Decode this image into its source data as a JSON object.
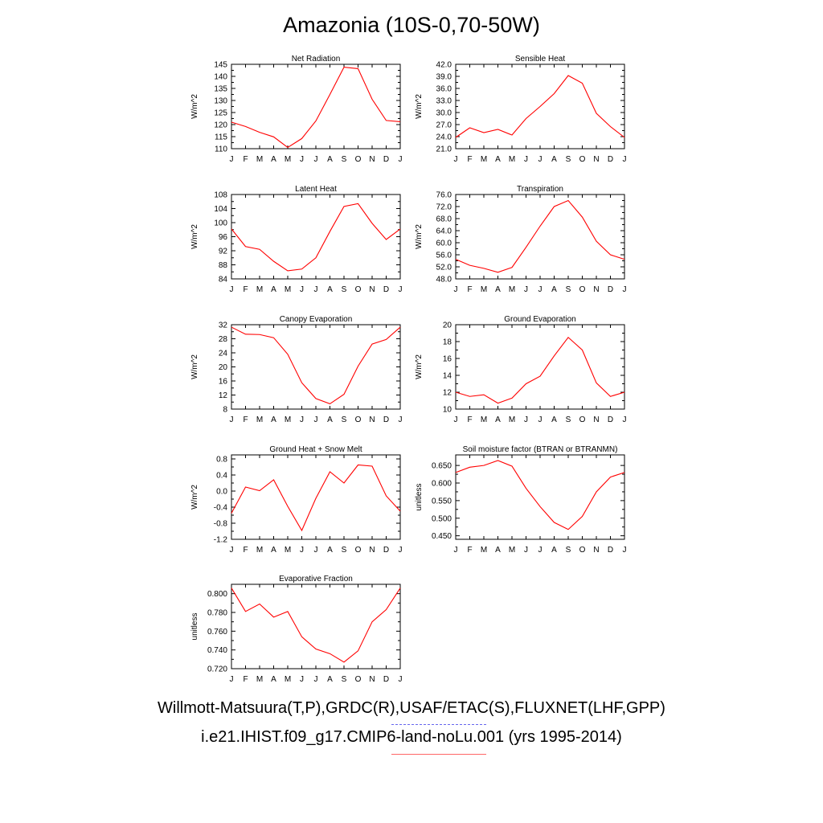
{
  "figure": {
    "title": "Amazonia (10S-0,70-50W)",
    "legend": {
      "observations": "Willmott-Matsuura(T,P),GRDC(R),USAF/ETAC(S),FLUXNET(LHF,GPP)",
      "model": "i.e21.IHIST.f09_g17.CMIP6-land-noLu.001 (yrs 1995-2014)"
    },
    "colors": {
      "model_line": "#ff0000",
      "obs_swatch": "#6666ee",
      "model_swatch": "#ff6666"
    }
  },
  "chart_data": [
    {
      "type": "line",
      "title": "Net Radiation",
      "ylabel": "W/m^2",
      "categories": [
        "J",
        "F",
        "M",
        "A",
        "M",
        "J",
        "J",
        "A",
        "S",
        "O",
        "N",
        "D",
        "J"
      ],
      "ylim": [
        110,
        145
      ],
      "yticks": [
        110,
        115,
        120,
        125,
        130,
        135,
        140,
        145
      ],
      "ydecimals": 0,
      "series": [
        {
          "color": "#ff0000",
          "values": [
            121.0,
            119.2,
            116.8,
            114.9,
            110.5,
            114.2,
            121.5,
            132.5,
            143.8,
            143.2,
            130.5,
            121.7,
            121.2
          ]
        }
      ]
    },
    {
      "type": "line",
      "title": "Sensible Heat",
      "ylabel": "W/m^2",
      "categories": [
        "J",
        "F",
        "M",
        "A",
        "M",
        "J",
        "J",
        "A",
        "S",
        "O",
        "N",
        "D",
        "J"
      ],
      "ylim": [
        21,
        42
      ],
      "yticks": [
        21,
        24,
        27,
        30,
        33,
        36,
        39,
        42
      ],
      "ydecimals": 1,
      "series": [
        {
          "color": "#ff0000",
          "values": [
            23.8,
            26.2,
            25.0,
            25.8,
            24.4,
            28.5,
            31.5,
            34.7,
            39.2,
            37.3,
            29.8,
            26.5,
            23.8
          ]
        }
      ]
    },
    {
      "type": "line",
      "title": "Latent Heat",
      "ylabel": "W/m^2",
      "categories": [
        "J",
        "F",
        "M",
        "A",
        "M",
        "J",
        "J",
        "A",
        "S",
        "O",
        "N",
        "D",
        "J"
      ],
      "ylim": [
        84,
        108
      ],
      "yticks": [
        84,
        88,
        92,
        96,
        100,
        104,
        108
      ],
      "ydecimals": 0,
      "series": [
        {
          "color": "#ff0000",
          "values": [
            98.2,
            93.2,
            92.4,
            89.0,
            86.3,
            86.8,
            90.0,
            97.5,
            104.6,
            105.4,
            99.8,
            95.2,
            98.2
          ]
        }
      ]
    },
    {
      "type": "line",
      "title": "Transpiration",
      "ylabel": "W/m^2",
      "categories": [
        "J",
        "F",
        "M",
        "A",
        "M",
        "J",
        "J",
        "A",
        "S",
        "O",
        "N",
        "D",
        "J"
      ],
      "ylim": [
        48,
        76
      ],
      "yticks": [
        48,
        52,
        56,
        60,
        64,
        68,
        72,
        76
      ],
      "ydecimals": 1,
      "series": [
        {
          "color": "#ff0000",
          "values": [
            54.5,
            52.5,
            51.5,
            50.2,
            51.8,
            58.5,
            65.5,
            72.0,
            74.0,
            68.5,
            60.5,
            56.0,
            54.5
          ]
        }
      ]
    },
    {
      "type": "line",
      "title": "Canopy Evaporation",
      "ylabel": "W/m^2",
      "categories": [
        "J",
        "F",
        "M",
        "A",
        "M",
        "J",
        "J",
        "A",
        "S",
        "O",
        "N",
        "D",
        "J"
      ],
      "ylim": [
        8,
        32
      ],
      "yticks": [
        8,
        12,
        16,
        20,
        24,
        28,
        32
      ],
      "ydecimals": 0,
      "series": [
        {
          "color": "#ff0000",
          "values": [
            31.3,
            29.3,
            29.2,
            28.3,
            23.6,
            15.5,
            11.0,
            9.5,
            12.2,
            20.2,
            26.5,
            27.8,
            31.3
          ]
        }
      ]
    },
    {
      "type": "line",
      "title": "Ground Evaporation",
      "ylabel": "W/m^2",
      "categories": [
        "J",
        "F",
        "M",
        "A",
        "M",
        "J",
        "J",
        "A",
        "S",
        "O",
        "N",
        "D",
        "J"
      ],
      "ylim": [
        10,
        20
      ],
      "yticks": [
        10,
        12,
        14,
        16,
        18,
        20
      ],
      "ydecimals": 0,
      "series": [
        {
          "color": "#ff0000",
          "values": [
            12.0,
            11.5,
            11.7,
            10.7,
            11.3,
            13.0,
            13.9,
            16.3,
            18.5,
            17.0,
            13.1,
            11.5,
            12.0
          ]
        }
      ]
    },
    {
      "type": "line",
      "title": "Ground Heat + Snow Melt",
      "ylabel": "W/m^2",
      "categories": [
        "J",
        "F",
        "M",
        "A",
        "M",
        "J",
        "J",
        "A",
        "S",
        "O",
        "N",
        "D",
        "J"
      ],
      "ylim": [
        -1.2,
        0.9
      ],
      "yticks": [
        -1.2,
        -0.8,
        -0.4,
        0.0,
        0.4,
        0.8
      ],
      "ydecimals": 1,
      "series": [
        {
          "color": "#ff0000",
          "values": [
            -0.55,
            0.1,
            0.01,
            0.28,
            -0.38,
            -0.98,
            -0.18,
            0.48,
            0.2,
            0.65,
            0.62,
            -0.12,
            -0.5
          ]
        }
      ]
    },
    {
      "type": "line",
      "title": "Soil moisture factor (BTRAN or BTRANMN)",
      "ylabel": "unitless",
      "categories": [
        "J",
        "F",
        "M",
        "A",
        "M",
        "J",
        "J",
        "A",
        "S",
        "O",
        "N",
        "D",
        "J"
      ],
      "ylim": [
        0.44,
        0.68
      ],
      "yticks": [
        0.45,
        0.5,
        0.55,
        0.6,
        0.65
      ],
      "ydecimals": 3,
      "series": [
        {
          "color": "#ff0000",
          "values": [
            0.63,
            0.645,
            0.65,
            0.664,
            0.648,
            0.585,
            0.533,
            0.488,
            0.468,
            0.505,
            0.575,
            0.617,
            0.63
          ]
        }
      ]
    },
    {
      "type": "line",
      "title": "Evaporative Fraction",
      "ylabel": "unitless",
      "categories": [
        "J",
        "F",
        "M",
        "A",
        "M",
        "J",
        "J",
        "A",
        "S",
        "O",
        "N",
        "D",
        "J"
      ],
      "ylim": [
        0.72,
        0.81
      ],
      "yticks": [
        0.72,
        0.74,
        0.76,
        0.78,
        0.8
      ],
      "ydecimals": 3,
      "series": [
        {
          "color": "#ff0000",
          "values": [
            0.806,
            0.781,
            0.789,
            0.775,
            0.781,
            0.754,
            0.741,
            0.736,
            0.727,
            0.739,
            0.77,
            0.783,
            0.806
          ]
        }
      ]
    }
  ]
}
